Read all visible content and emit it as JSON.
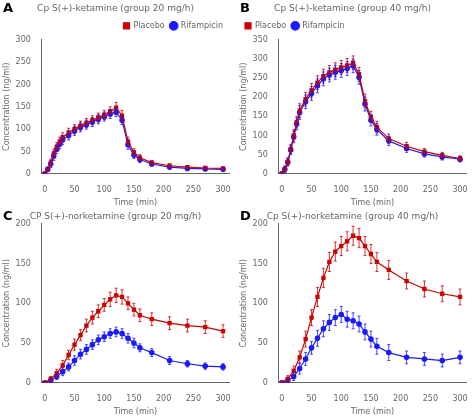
{
  "chart_data": [
    {
      "type": "line",
      "panel_label": "A",
      "title": "Cp S(+)-ketamine (group 20 mg/h)",
      "xlabel": "Time (min)",
      "ylabel": "Concentration (ng/ml)",
      "xlim": [
        -5,
        310
      ],
      "xticks": [
        0,
        50,
        100,
        150,
        200,
        250,
        300
      ],
      "ylim": [
        0,
        300
      ],
      "yticks": [
        0,
        50,
        100,
        150,
        200,
        250,
        300
      ],
      "grid": false,
      "legend": "upper right",
      "x": [
        0,
        5,
        10,
        15,
        20,
        25,
        30,
        40,
        50,
        60,
        70,
        80,
        90,
        100,
        110,
        120,
        130,
        140,
        150,
        160,
        180,
        210,
        240,
        270,
        300
      ],
      "series": [
        {
          "name": "Placebo",
          "color": "#cc0000",
          "marker": "square",
          "values": [
            0,
            10,
            25,
            45,
            60,
            72,
            82,
            92,
            100,
            108,
            114,
            120,
            126,
            132,
            140,
            148,
            130,
            72,
            48,
            36,
            25,
            18,
            15,
            13,
            12
          ],
          "errors": [
            0,
            5,
            8,
            10,
            10,
            10,
            10,
            10,
            10,
            10,
            10,
            10,
            10,
            10,
            10,
            12,
            12,
            10,
            8,
            7,
            5,
            4,
            3,
            3,
            3
          ]
        },
        {
          "name": "Rifampicin",
          "color": "#1a1aff",
          "marker": "circle",
          "values": [
            0,
            10,
            22,
            40,
            55,
            66,
            76,
            86,
            96,
            104,
            110,
            116,
            122,
            128,
            134,
            138,
            120,
            65,
            42,
            32,
            22,
            15,
            12,
            11,
            10
          ],
          "errors": [
            0,
            5,
            8,
            10,
            10,
            10,
            10,
            10,
            10,
            10,
            10,
            10,
            10,
            10,
            10,
            10,
            10,
            10,
            8,
            7,
            5,
            4,
            3,
            3,
            3
          ]
        }
      ]
    },
    {
      "type": "line",
      "panel_label": "B",
      "title": "Cp S(+)-ketamine (group 40 mg/h)",
      "xlabel": "Time (min)",
      "ylabel": "Concentration (ng/ml)",
      "xlim": [
        -5,
        310
      ],
      "xticks": [
        0,
        50,
        100,
        150,
        200,
        250,
        300
      ],
      "ylim": [
        0,
        350
      ],
      "yticks": [
        0,
        50,
        100,
        150,
        200,
        250,
        300,
        350
      ],
      "grid": false,
      "legend": "upper left",
      "x": [
        0,
        5,
        10,
        15,
        20,
        25,
        30,
        40,
        50,
        60,
        70,
        80,
        90,
        100,
        110,
        120,
        130,
        140,
        150,
        160,
        180,
        210,
        240,
        270,
        300
      ],
      "series": [
        {
          "name": "Placebo",
          "color": "#cc0000",
          "marker": "square",
          "values": [
            0,
            12,
            32,
            65,
            100,
            135,
            165,
            195,
            218,
            238,
            255,
            265,
            272,
            278,
            283,
            290,
            260,
            190,
            148,
            122,
            92,
            72,
            58,
            48,
            40
          ],
          "errors": [
            0,
            8,
            10,
            12,
            15,
            15,
            18,
            18,
            18,
            18,
            18,
            18,
            18,
            18,
            18,
            18,
            18,
            18,
            15,
            15,
            12,
            10,
            8,
            8,
            7
          ]
        },
        {
          "name": "Rifampicin",
          "color": "#1a1aff",
          "marker": "circle",
          "values": [
            0,
            12,
            30,
            62,
            96,
            130,
            160,
            188,
            210,
            230,
            248,
            258,
            265,
            270,
            275,
            282,
            252,
            182,
            140,
            116,
            86,
            66,
            52,
            44,
            38
          ],
          "errors": [
            0,
            8,
            10,
            12,
            15,
            15,
            18,
            18,
            18,
            18,
            18,
            18,
            18,
            18,
            18,
            18,
            18,
            18,
            15,
            15,
            12,
            10,
            8,
            8,
            7
          ]
        }
      ]
    },
    {
      "type": "line",
      "panel_label": "C",
      "title": "CP S(+)-norketamine (group 20 mg/h)",
      "xlabel": "Time (min)",
      "ylabel": "Concentration (ng/ml)",
      "xlim": [
        -5,
        310
      ],
      "xticks": [
        0,
        50,
        100,
        150,
        200,
        250,
        300
      ],
      "ylim": [
        0,
        200
      ],
      "yticks": [
        0,
        50,
        100,
        150,
        200
      ],
      "grid": false,
      "legend": false,
      "x": [
        0,
        10,
        20,
        30,
        40,
        50,
        60,
        70,
        80,
        90,
        100,
        110,
        120,
        130,
        140,
        150,
        160,
        180,
        210,
        240,
        270,
        300
      ],
      "series": [
        {
          "name": "Placebo",
          "color": "#cc0000",
          "marker": "square",
          "values": [
            0,
            5,
            12,
            22,
            35,
            48,
            60,
            72,
            82,
            90,
            98,
            105,
            110,
            108,
            100,
            92,
            85,
            80,
            75,
            72,
            70,
            65
          ],
          "errors": [
            0,
            3,
            5,
            6,
            6,
            7,
            7,
            8,
            8,
            8,
            8,
            9,
            9,
            9,
            8,
            8,
            8,
            8,
            8,
            8,
            8,
            8
          ]
        },
        {
          "name": "Rifampicin",
          "color": "#1a1aff",
          "marker": "circle",
          "values": [
            0,
            3,
            8,
            14,
            20,
            28,
            36,
            42,
            48,
            54,
            58,
            62,
            64,
            62,
            56,
            50,
            44,
            38,
            28,
            24,
            21,
            20
          ],
          "errors": [
            0,
            2,
            4,
            5,
            5,
            6,
            6,
            6,
            6,
            6,
            6,
            6,
            6,
            6,
            6,
            6,
            5,
            5,
            5,
            4,
            4,
            4
          ]
        }
      ]
    },
    {
      "type": "line",
      "panel_label": "D",
      "title": "Cp S(+)-norketamine (group 40 mg/h)",
      "xlabel": "Time (min)",
      "ylabel": "Concentration (ng/ml)",
      "xlim": [
        -5,
        310
      ],
      "xticks": [
        0,
        50,
        100,
        150,
        200,
        250,
        300
      ],
      "ylim": [
        0,
        200
      ],
      "yticks": [
        0,
        50,
        100,
        150,
        200
      ],
      "grid": false,
      "legend": false,
      "x": [
        0,
        10,
        20,
        30,
        40,
        50,
        60,
        70,
        80,
        90,
        100,
        110,
        120,
        130,
        140,
        150,
        160,
        180,
        210,
        240,
        270,
        300
      ],
      "series": [
        {
          "name": "Placebo",
          "color": "#cc0000",
          "marker": "square",
          "values": [
            0,
            5,
            15,
            32,
            55,
            82,
            108,
            132,
            152,
            165,
            172,
            178,
            185,
            182,
            172,
            162,
            152,
            142,
            128,
            118,
            112,
            108
          ],
          "errors": [
            0,
            4,
            6,
            8,
            10,
            10,
            12,
            12,
            12,
            12,
            12,
            12,
            12,
            12,
            12,
            12,
            12,
            12,
            10,
            10,
            10,
            10
          ]
        },
        {
          "name": "Rifampicin",
          "color": "#1a1aff",
          "marker": "circle",
          "values": [
            0,
            3,
            8,
            18,
            30,
            44,
            56,
            68,
            76,
            82,
            86,
            80,
            78,
            74,
            64,
            55,
            46,
            38,
            32,
            30,
            28,
            32
          ],
          "errors": [
            0,
            3,
            5,
            7,
            8,
            8,
            10,
            10,
            10,
            10,
            10,
            10,
            10,
            10,
            10,
            10,
            10,
            10,
            8,
            8,
            8,
            8
          ]
        }
      ]
    }
  ]
}
